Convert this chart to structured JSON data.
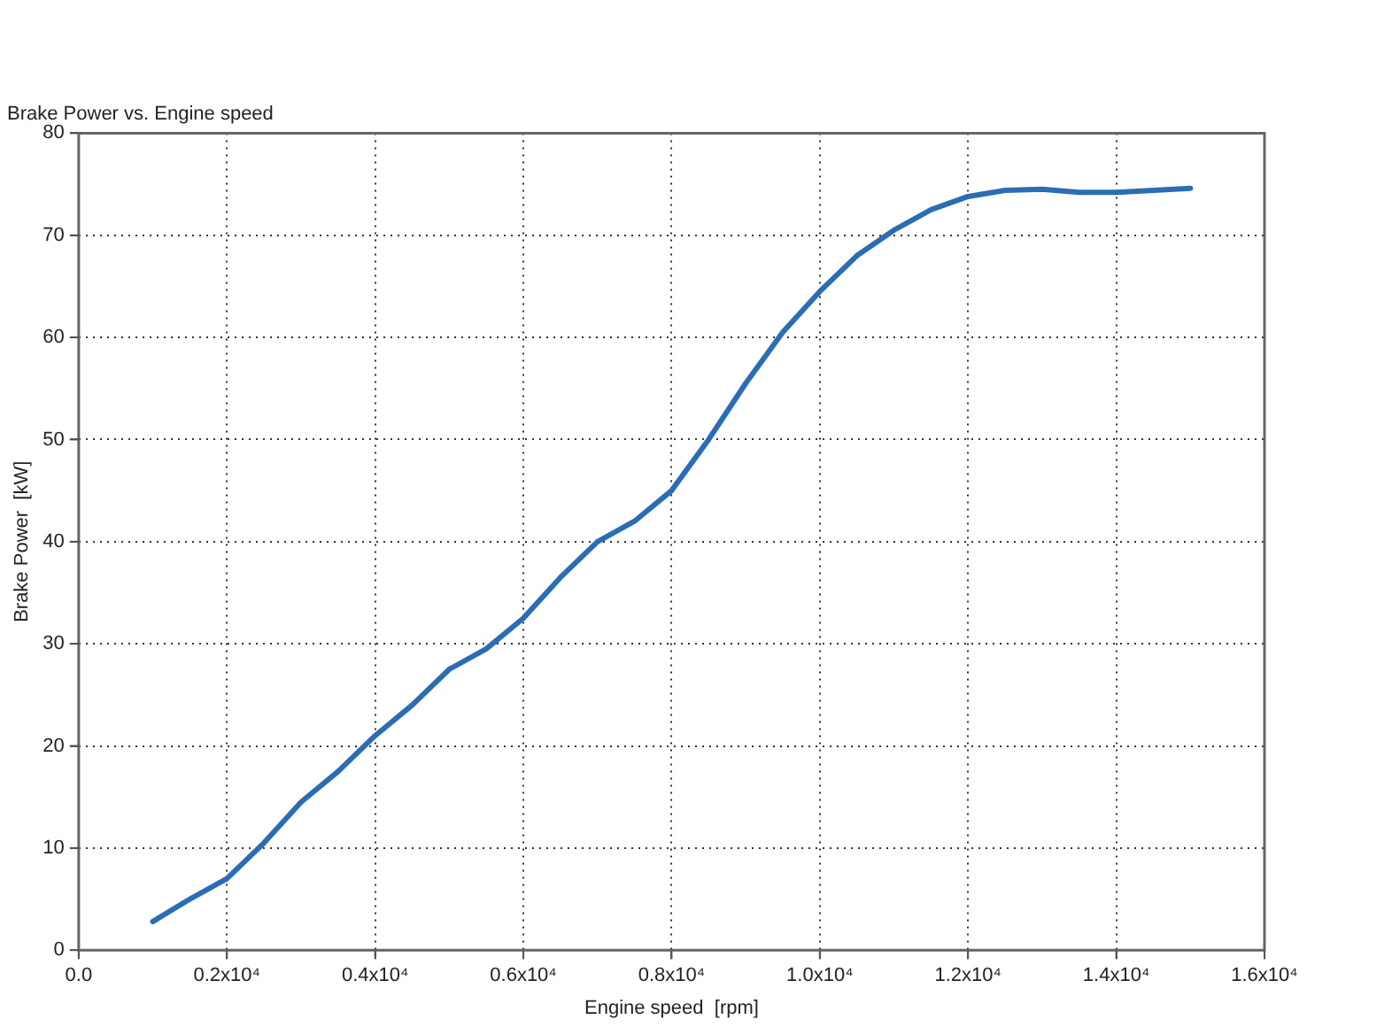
{
  "chart_data": {
    "type": "line",
    "title": "Brake Power vs. Engine speed",
    "xlabel": "Engine speed  [rpm]",
    "ylabel": "Brake Power  [kW]",
    "x": [
      1000,
      1500,
      2000,
      2500,
      3000,
      3500,
      4000,
      4500,
      5000,
      5500,
      6000,
      6500,
      7000,
      7500,
      8000,
      8500,
      9000,
      9500,
      10000,
      10500,
      11000,
      11500,
      12000,
      12500,
      13000,
      13500,
      14000,
      14500,
      15000
    ],
    "series": [
      {
        "color": "#2a6db5",
        "values": [
          2.8,
          5,
          7,
          10.5,
          14.5,
          17.5,
          21,
          24,
          27.5,
          29.5,
          32.5,
          36.5,
          40,
          42,
          45,
          50,
          55.5,
          60.5,
          64.5,
          68,
          70.5,
          72.5,
          73.8,
          74.4,
          74.5,
          74.2,
          74.2,
          74.4,
          74.6
        ]
      }
    ],
    "xlim": [
      0,
      16000
    ],
    "ylim": [
      0,
      80
    ],
    "xticks": [
      {
        "value": 0,
        "label": "0.0"
      },
      {
        "value": 2000,
        "label": "0.2x10⁴"
      },
      {
        "value": 4000,
        "label": "0.4x10⁴"
      },
      {
        "value": 6000,
        "label": "0.6x10⁴"
      },
      {
        "value": 8000,
        "label": "0.8x10⁴"
      },
      {
        "value": 10000,
        "label": "1.0x10⁴"
      },
      {
        "value": 12000,
        "label": "1.2x10⁴"
      },
      {
        "value": 14000,
        "label": "1.4x10⁴"
      },
      {
        "value": 16000,
        "label": "1.6x10⁴"
      }
    ],
    "yticks": [
      0,
      10,
      20,
      30,
      40,
      50,
      60,
      70,
      80
    ],
    "grid": true,
    "legend": false,
    "marker": "none",
    "line_style": "solid"
  }
}
